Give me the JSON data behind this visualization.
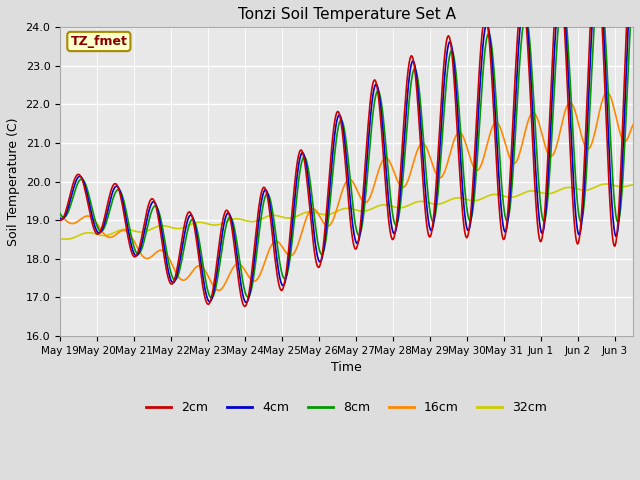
{
  "title": "Tonzi Soil Temperature Set A",
  "xlabel": "Time",
  "ylabel": "Soil Temperature (C)",
  "ylim": [
    16.0,
    24.0
  ],
  "yticks": [
    16.0,
    17.0,
    18.0,
    19.0,
    20.0,
    21.0,
    22.0,
    23.0,
    24.0
  ],
  "series_labels": [
    "2cm",
    "4cm",
    "8cm",
    "16cm",
    "32cm"
  ],
  "series_colors": [
    "#cc0000",
    "#0000cc",
    "#009900",
    "#ff8800",
    "#cccc00"
  ],
  "annotation_text": "TZ_fmet",
  "annotation_color": "#880000",
  "annotation_bg": "#ffffcc",
  "annotation_border": "#aa8800",
  "bg_color": "#dddddd",
  "plot_bg_color": "#e8e8e8",
  "tick_labels": [
    "May 19",
    "May 20",
    "May 21",
    "May 22",
    "May 23",
    "May 24",
    "May 25",
    "May 26",
    "May 27",
    "May 28",
    "May 29",
    "May 30",
    "May 31",
    "Jun 1",
    "Jun 2",
    "Jun 3"
  ],
  "grid_color": "#ffffff",
  "figsize": [
    6.4,
    4.8
  ],
  "dpi": 100
}
